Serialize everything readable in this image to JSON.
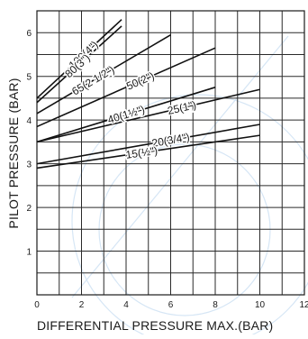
{
  "chart_data": {
    "type": "line",
    "xlabel": "DIFFERENTIAL PRESSURE MAX.(BAR)",
    "ylabel": "PILOT PRESSURE (BAR)",
    "xlim": [
      0,
      12
    ],
    "ylim": [
      0,
      6.5
    ],
    "x_ticks": [
      "0",
      "2",
      "4",
      "6",
      "8",
      "10",
      "12"
    ],
    "y_ticks": [
      "1",
      "2",
      "3",
      "4",
      "5",
      "6"
    ],
    "grid": true,
    "series": [
      {
        "name": "100(4\")",
        "x": [
          0,
          3.8
        ],
        "y": [
          4.5,
          6.3
        ]
      },
      {
        "name": "80(3\")",
        "x": [
          0,
          3.8
        ],
        "y": [
          4.4,
          6.15
        ]
      },
      {
        "name": "65(2 1/2\")",
        "x": [
          0,
          6.0
        ],
        "y": [
          4.15,
          5.95
        ]
      },
      {
        "name": "50(2\")",
        "x": [
          0,
          8.0
        ],
        "y": [
          3.85,
          5.65
        ]
      },
      {
        "name": "40(1½\")",
        "x": [
          0,
          8.0
        ],
        "y": [
          3.5,
          4.75
        ]
      },
      {
        "name": "25(1\")",
        "x": [
          0,
          10.0
        ],
        "y": [
          3.5,
          4.7
        ]
      },
      {
        "name": "20(3/4\")",
        "x": [
          0,
          10.0
        ],
        "y": [
          3.0,
          3.9
        ]
      },
      {
        "name": "15(½\")",
        "x": [
          0,
          10.0
        ],
        "y": [
          2.9,
          3.65
        ]
      }
    ]
  }
}
